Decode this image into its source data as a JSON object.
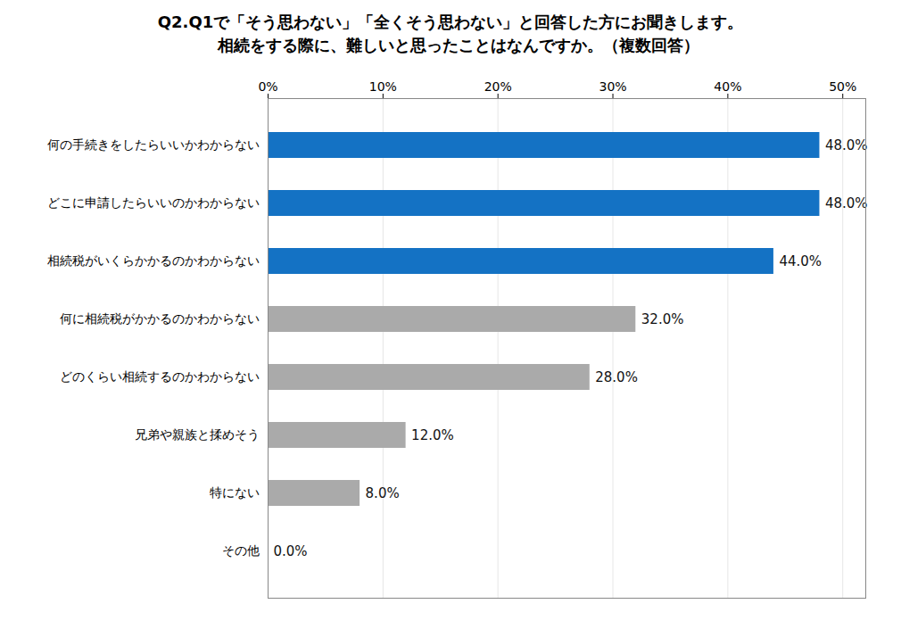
{
  "chart_data": {
    "type": "bar",
    "title": "Q2.Q1で「そう思わない」「全くそう思わない」と回答した方にお聞きします。\n　相続をする際に、難しいと思ったことはなんですか。（複数回答）",
    "orientation": "horizontal",
    "categories": [
      "何の手続きをしたらいいかわからない",
      "どこに申請したらいいのかわからない",
      "相続税がいくらかかるのかわからない",
      "何に相続税がかかるのかわからない",
      "どのくらい相続するのかわからない",
      "兄弟や親族と揉めそう",
      "特にない",
      "その他"
    ],
    "values": [
      48.0,
      48.0,
      44.0,
      32.0,
      28.0,
      12.0,
      8.0,
      0.0
    ],
    "value_labels": [
      "48.0%",
      "48.0%",
      "44.0%",
      "32.0%",
      "28.0%",
      "12.0%",
      "8.0%",
      "0.0%"
    ],
    "colors": [
      "#1472C4",
      "#1472C4",
      "#1472C4",
      "#AAAAAA",
      "#AAAAAA",
      "#AAAAAA",
      "#AAAAAA",
      "#AAAAAA"
    ],
    "xlim": [
      0,
      52
    ],
    "xticks": [
      {
        "value": 0,
        "label": "0%"
      },
      {
        "value": 10,
        "label": "10%"
      },
      {
        "value": 20,
        "label": "20%"
      },
      {
        "value": 30,
        "label": "30%"
      },
      {
        "value": 40,
        "label": "40%"
      },
      {
        "value": 50,
        "label": "50%"
      }
    ],
    "grid": true,
    "data_labels": true
  }
}
